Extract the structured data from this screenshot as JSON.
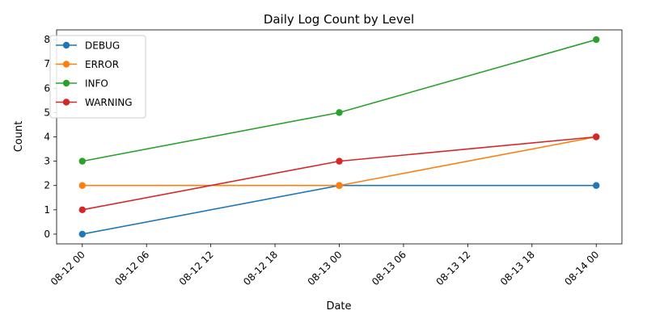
{
  "chart_data": {
    "type": "line",
    "title": "Daily Log Count by Level",
    "xlabel": "Date",
    "ylabel": "Count",
    "x": [
      "2024-08-12T00:00",
      "2024-08-13T00:00",
      "2024-08-14T00:00"
    ],
    "x_ticks": [
      "08-12 00",
      "08-12 06",
      "08-12 12",
      "08-12 18",
      "08-13 00",
      "08-13 06",
      "08-13 12",
      "08-13 18",
      "08-14 00"
    ],
    "y_ticks": [
      0,
      1,
      2,
      3,
      4,
      5,
      6,
      7,
      8
    ],
    "ylim": [
      -0.4,
      8.4
    ],
    "grid": false,
    "legend_position": "top-left",
    "series": [
      {
        "name": "DEBUG",
        "values": [
          0,
          2,
          2
        ],
        "color": "#1f77b4"
      },
      {
        "name": "ERROR",
        "values": [
          2,
          2,
          4
        ],
        "color": "#ff7f0e"
      },
      {
        "name": "INFO",
        "values": [
          3,
          5,
          8
        ],
        "color": "#2ca02c"
      },
      {
        "name": "WARNING",
        "values": [
          1,
          3,
          4
        ],
        "color": "#d62728"
      }
    ]
  }
}
